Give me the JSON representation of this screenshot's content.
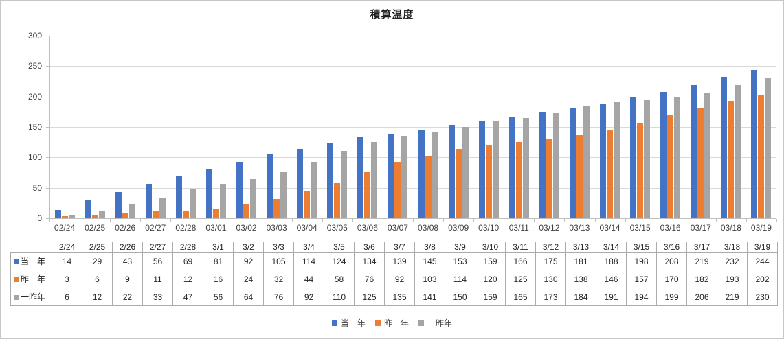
{
  "title": "積算温度",
  "colors": {
    "series_blue": "#4472C4",
    "series_orange": "#ED7D31",
    "series_gray": "#A5A5A5",
    "gridline": "#D9D9D9",
    "axis": "#BFBFBF",
    "table_border": "#ABABAB",
    "text": "#404040"
  },
  "chart_data": {
    "type": "bar",
    "title": "積算温度",
    "categories": [
      "02/24",
      "02/25",
      "02/26",
      "02/27",
      "02/28",
      "03/01",
      "03/02",
      "03/03",
      "03/04",
      "03/05",
      "03/06",
      "03/07",
      "03/08",
      "03/09",
      "03/10",
      "03/11",
      "03/12",
      "03/13",
      "03/14",
      "03/15",
      "03/16",
      "03/17",
      "03/18",
      "03/19"
    ],
    "table_categories": [
      "2/24",
      "2/25",
      "2/26",
      "2/27",
      "2/28",
      "3/1",
      "3/2",
      "3/3",
      "3/4",
      "3/5",
      "3/6",
      "3/7",
      "3/8",
      "3/9",
      "3/10",
      "3/11",
      "3/12",
      "3/13",
      "3/14",
      "3/15",
      "3/16",
      "3/17",
      "3/18",
      "3/19"
    ],
    "series": [
      {
        "name": "当　年",
        "color": "#4472C4",
        "values": [
          14,
          29,
          43,
          56,
          69,
          81,
          92,
          105,
          114,
          124,
          134,
          139,
          145,
          153,
          159,
          166,
          175,
          181,
          188,
          198,
          208,
          219,
          232,
          244
        ]
      },
      {
        "name": "昨　年",
        "color": "#ED7D31",
        "values": [
          3,
          6,
          9,
          11,
          12,
          16,
          24,
          32,
          44,
          58,
          76,
          92,
          103,
          114,
          120,
          125,
          130,
          138,
          146,
          157,
          170,
          182,
          193,
          202
        ]
      },
      {
        "name": "一昨年",
        "color": "#A5A5A5",
        "values": [
          6,
          12,
          22,
          33,
          47,
          56,
          64,
          76,
          92,
          110,
          125,
          135,
          141,
          150,
          159,
          165,
          173,
          184,
          191,
          194,
          199,
          206,
          219,
          230
        ]
      }
    ],
    "xlabel": "",
    "ylabel": "",
    "ylim": [
      0,
      300
    ],
    "ytick_step": 50,
    "ytick_labels": [
      "0",
      "50",
      "100",
      "150",
      "200",
      "250",
      "300"
    ],
    "grid": true,
    "legend_position": "bottom",
    "legend": [
      "当　年",
      "昨　年",
      "一昨年"
    ]
  }
}
